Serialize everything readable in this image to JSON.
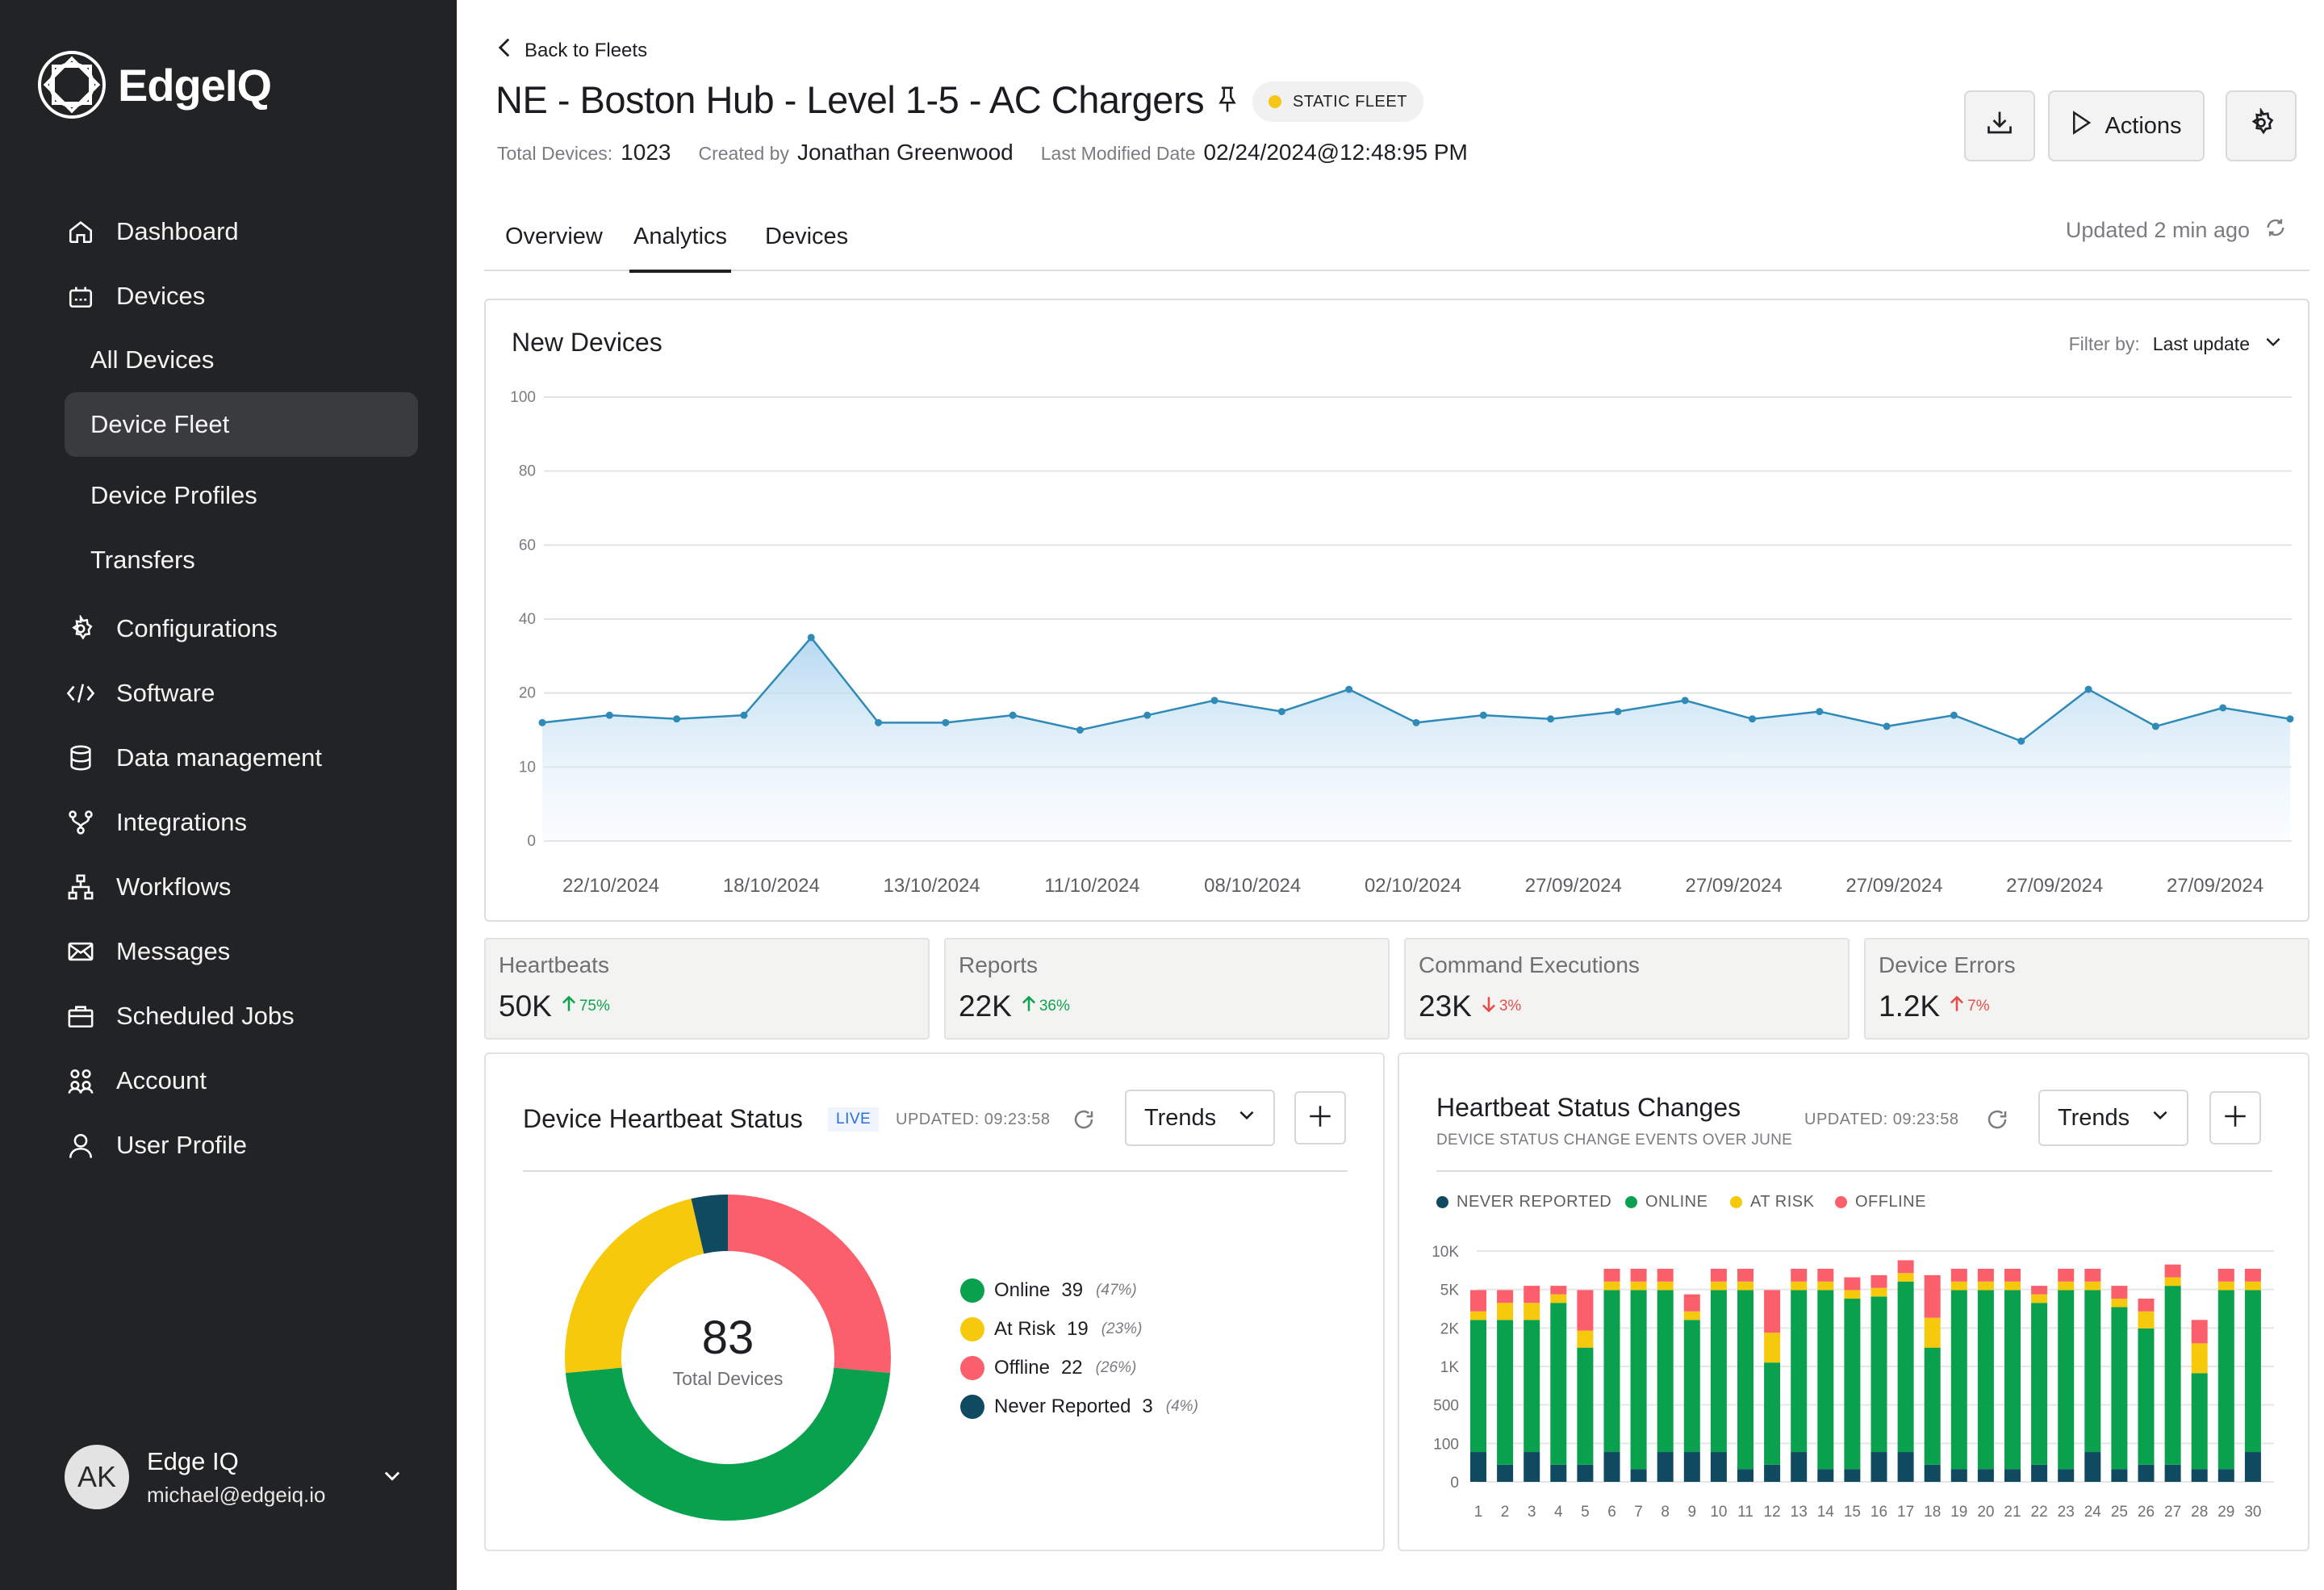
{
  "brand": {
    "name": "EdgeIQ"
  },
  "sidebar": {
    "items": [
      {
        "label": "Dashboard",
        "icon": "home-icon"
      },
      {
        "label": "Devices",
        "icon": "device-icon"
      },
      {
        "label": "All Devices"
      },
      {
        "label": "Device Fleet",
        "active": true
      },
      {
        "label": "Device Profiles"
      },
      {
        "label": "Transfers"
      },
      {
        "label": "Configurations",
        "icon": "gear-icon"
      },
      {
        "label": "Software",
        "icon": "code-icon"
      },
      {
        "label": "Data management",
        "icon": "database-icon"
      },
      {
        "label": "Integrations",
        "icon": "integrations-icon"
      },
      {
        "label": "Workflows",
        "icon": "workflow-icon"
      },
      {
        "label": "Messages",
        "icon": "mail-icon"
      },
      {
        "label": "Scheduled Jobs",
        "icon": "briefcase-icon"
      },
      {
        "label": "Account",
        "icon": "users-icon"
      },
      {
        "label": "User Profile",
        "icon": "user-icon"
      }
    ],
    "user": {
      "initials": "AK",
      "name": "Edge IQ",
      "email": "michael@edgeiq.io"
    }
  },
  "header": {
    "back_label": "Back to Fleets",
    "title": "NE - Boston Hub - Level 1-5 - AC Chargers",
    "badge": "STATIC FLEET",
    "badge_color": "#f5c518",
    "total_devices_label": "Total Devices:",
    "total_devices": "1023",
    "created_by_label": "Created by",
    "created_by": "Jonathan Greenwood",
    "modified_label": "Last Modified Date",
    "modified": "02/24/2024@12:48:95 PM",
    "actions_label": "Actions"
  },
  "tabs": {
    "items": [
      "Overview",
      "Analytics",
      "Devices"
    ],
    "active": "Analytics",
    "updated": "Updated 2 min ago"
  },
  "new_devices": {
    "title": "New Devices",
    "filter_label": "Filter by:",
    "filter_value": "Last update"
  },
  "stats": [
    {
      "label": "Heartbeats",
      "value": "50K",
      "change": "75%",
      "direction": "up"
    },
    {
      "label": "Reports",
      "value": "22K",
      "change": "36%",
      "direction": "up"
    },
    {
      "label": "Command Executions",
      "value": "23K",
      "change": "3%",
      "direction": "down"
    },
    {
      "label": "Device Errors",
      "value": "1.2K",
      "change": "7%",
      "direction": "up"
    }
  ],
  "heartbeat_status": {
    "title": "Device Heartbeat Status",
    "live": "LIVE",
    "updated": "UPDATED: 09:23:58",
    "trends": "Trends",
    "total": "83",
    "total_label": "Total Devices"
  },
  "status_changes": {
    "title": "Heartbeat Status Changes",
    "subtitle": "DEVICE STATUS CHANGE EVENTS OVER JUNE",
    "updated": "UPDATED: 09:23:58",
    "trends": "Trends"
  },
  "colors": {
    "online": "#0aa14e",
    "at_risk": "#f7c90c",
    "offline": "#fb5f6b",
    "never_reported": "#104a60",
    "line": "#2f8ab8"
  },
  "chart_data": [
    {
      "type": "area",
      "title": "New Devices",
      "x_ticks": [
        "22/10/2024",
        "18/10/2024",
        "13/10/2024",
        "11/10/2024",
        "08/10/2024",
        "02/10/2024",
        "27/09/2024",
        "27/09/2024",
        "27/09/2024",
        "27/09/2024",
        "27/09/2024"
      ],
      "y_ticks": [
        "0",
        "10",
        "20",
        "40",
        "60",
        "80",
        "100"
      ],
      "values": [
        16,
        17,
        16.5,
        17,
        35,
        16,
        16,
        17,
        15,
        17,
        19,
        17.5,
        21,
        16,
        17,
        16.5,
        17.5,
        19,
        16.5,
        17.5,
        15.5,
        17,
        13.5,
        21,
        15.5,
        18,
        16.5
      ],
      "grid": true
    },
    {
      "type": "pie",
      "title": "Device Heartbeat Status",
      "slices": [
        {
          "name": "Online",
          "value": 39,
          "pct": "(47%)",
          "color": "#0aa14e"
        },
        {
          "name": "At Risk",
          "value": 19,
          "pct": "(23%)",
          "color": "#f7c90c"
        },
        {
          "name": "Offline",
          "value": 22,
          "pct": "(26%)",
          "color": "#fb5f6b"
        },
        {
          "name": "Never Reported",
          "value": 3,
          "pct": "(4%)",
          "color": "#104a60"
        }
      ]
    },
    {
      "type": "bar",
      "stacked": true,
      "title": "Heartbeat Status Changes",
      "categories": [
        "1",
        "2",
        "3",
        "4",
        "5",
        "6",
        "7",
        "8",
        "9",
        "10",
        "11",
        "12",
        "13",
        "14",
        "15",
        "16",
        "17",
        "18",
        "19",
        "20",
        "21",
        "22",
        "23",
        "24",
        "25",
        "26",
        "27",
        "28",
        "29",
        "30"
      ],
      "y_ticks": [
        "0",
        "100",
        "500",
        "1K",
        "2K",
        "5K",
        "10K"
      ],
      "legend": [
        "NEVER REPORTED",
        "ONLINE",
        "AT RISK",
        "OFFLINE"
      ],
      "series": [
        {
          "name": "NEVER REPORTED",
          "values": [
            0.14,
            0.08,
            0.14,
            0.08,
            0.08,
            0.14,
            0.06,
            0.14,
            0.14,
            0.14,
            0.06,
            0.08,
            0.14,
            0.06,
            0.06,
            0.14,
            0.14,
            0.08,
            0.06,
            0.06,
            0.06,
            0.08,
            0.06,
            0.14,
            0.06,
            0.08,
            0.08,
            0.06,
            0.06,
            0.14
          ]
        },
        {
          "name": "ONLINE",
          "values": [
            0.62,
            0.68,
            0.62,
            0.76,
            0.55,
            0.76,
            0.84,
            0.76,
            0.62,
            0.76,
            0.84,
            0.48,
            0.76,
            0.84,
            0.8,
            0.73,
            0.8,
            0.55,
            0.84,
            0.84,
            0.84,
            0.76,
            0.84,
            0.76,
            0.76,
            0.64,
            0.84,
            0.45,
            0.84,
            0.76
          ]
        },
        {
          "name": "AT RISK",
          "values": [
            0.04,
            0.08,
            0.08,
            0.04,
            0.08,
            0.04,
            0.04,
            0.04,
            0.04,
            0.04,
            0.04,
            0.14,
            0.04,
            0.04,
            0.04,
            0.04,
            0.04,
            0.14,
            0.04,
            0.04,
            0.04,
            0.04,
            0.04,
            0.04,
            0.04,
            0.08,
            0.04,
            0.14,
            0.04,
            0.04
          ]
        },
        {
          "name": "OFFLINE",
          "values": [
            0.1,
            0.06,
            0.08,
            0.04,
            0.19,
            0.06,
            0.06,
            0.06,
            0.08,
            0.06,
            0.06,
            0.2,
            0.06,
            0.06,
            0.06,
            0.06,
            0.06,
            0.2,
            0.06,
            0.06,
            0.06,
            0.04,
            0.06,
            0.06,
            0.06,
            0.06,
            0.06,
            0.11,
            0.06,
            0.06
          ]
        }
      ]
    }
  ]
}
